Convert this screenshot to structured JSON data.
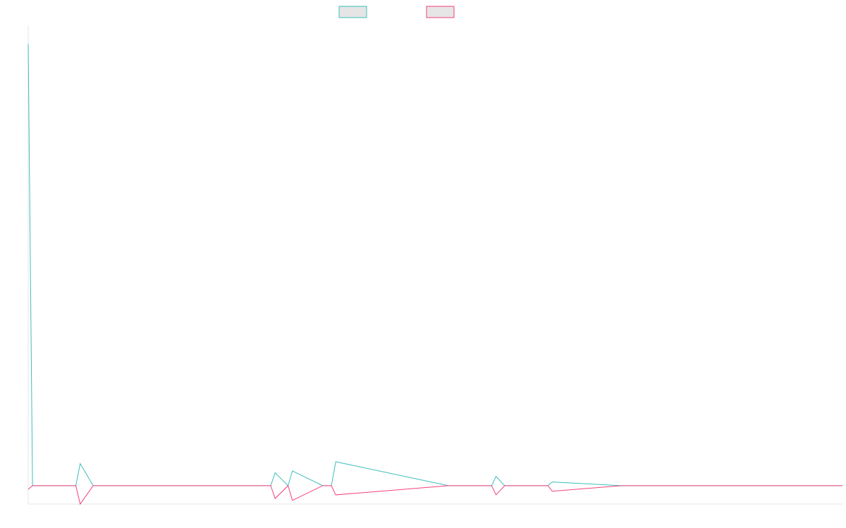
{
  "chart_data": {
    "type": "line",
    "title": "",
    "xlabel": "",
    "ylabel": "",
    "legend": {
      "placement": "top-center",
      "entries": [
        "",
        ""
      ]
    },
    "grid": false,
    "y_axis_visible": false,
    "x_axis_visible": true,
    "ylim": [
      -1,
      25
    ],
    "x": [
      0,
      1,
      11,
      12,
      15,
      17,
      56,
      57,
      60,
      61,
      68,
      70,
      71,
      97,
      107,
      108,
      110,
      117,
      120,
      121,
      137,
      143,
      147,
      175,
      188
    ],
    "series": [
      {
        "name": "",
        "color": "#3dbdbd",
        "values": [
          24,
          0,
          0,
          1.2,
          0,
          0,
          0,
          0.7,
          0,
          0.8,
          0,
          0,
          1.3,
          0,
          0,
          0.5,
          0,
          0,
          0,
          0.2,
          0,
          0,
          0,
          0,
          0
        ]
      },
      {
        "name": "",
        "color": "#f5407a",
        "values": [
          -0.2,
          0,
          0,
          -1,
          0,
          0,
          0,
          -0.7,
          0,
          -0.8,
          0,
          0,
          -0.5,
          0,
          0,
          -0.5,
          0,
          0,
          0,
          -0.3,
          0,
          0,
          0,
          0,
          0
        ]
      }
    ]
  }
}
